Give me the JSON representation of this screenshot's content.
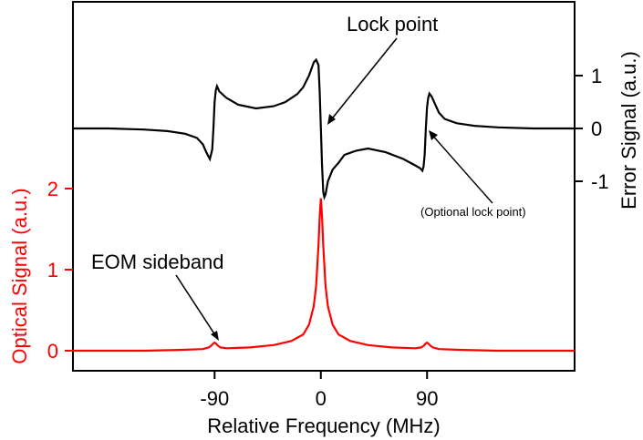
{
  "chart_data": {
    "type": "line",
    "xlabel": "Relative Frequency (MHz)",
    "x_ticks": [
      {
        "value": -90,
        "label": "-90"
      },
      {
        "value": 0,
        "label": "0"
      },
      {
        "value": 90,
        "label": "90"
      }
    ],
    "xlim": [
      -210,
      215
    ],
    "left_axis": {
      "label": "Optical Signal (a.u.)",
      "color": "#ff0000",
      "ticks": [
        {
          "value": 0,
          "label": "0"
        },
        {
          "value": 1,
          "label": "1"
        },
        {
          "value": 2,
          "label": "2"
        }
      ]
    },
    "right_axis": {
      "label": "Error Signal (a.u.)",
      "color": "#000000",
      "ticks": [
        {
          "value": 1,
          "label": "1"
        },
        {
          "value": 0,
          "label": "0"
        },
        {
          "value": -1,
          "label": "-1"
        }
      ]
    },
    "series": [
      {
        "axis": "left",
        "color": "#ff0000",
        "x": [
          -210,
          -150,
          -120,
          -100,
          -95,
          -93,
          -91,
          -90,
          -89,
          -87,
          -85,
          -80,
          -60,
          -40,
          -25,
          -15,
          -10,
          -6,
          -4,
          -2,
          -1,
          0,
          1,
          2,
          4,
          6,
          10,
          15,
          25,
          40,
          60,
          80,
          85,
          87,
          89,
          90,
          91,
          93,
          95,
          100,
          120,
          150,
          215
        ],
        "y": [
          0.0,
          0.0,
          0.01,
          0.02,
          0.04,
          0.06,
          0.09,
          0.1,
          0.09,
          0.06,
          0.04,
          0.03,
          0.04,
          0.07,
          0.12,
          0.2,
          0.32,
          0.55,
          0.8,
          1.3,
          1.65,
          1.88,
          1.65,
          1.3,
          0.8,
          0.55,
          0.32,
          0.2,
          0.12,
          0.07,
          0.04,
          0.03,
          0.04,
          0.06,
          0.09,
          0.1,
          0.09,
          0.06,
          0.04,
          0.02,
          0.01,
          0.0,
          0.0
        ]
      },
      {
        "axis": "right",
        "color": "#000000",
        "x": [
          -210,
          -180,
          -150,
          -130,
          -115,
          -105,
          -100,
          -97,
          -94,
          -92,
          -91,
          -90,
          -89,
          -88,
          -87,
          -86,
          -80,
          -70,
          -55,
          -40,
          -30,
          -20,
          -15,
          -10,
          -6,
          -4,
          -2,
          -1,
          0,
          1,
          2,
          3,
          4,
          6,
          10,
          15,
          20,
          30,
          40,
          55,
          70,
          80,
          84,
          86,
          87,
          88,
          89,
          90,
          91,
          92,
          94,
          97,
          100,
          105,
          115,
          130,
          150,
          180,
          215
        ],
        "y": [
          0.0,
          0.0,
          -0.02,
          -0.05,
          -0.1,
          -0.18,
          -0.3,
          -0.45,
          -0.58,
          -0.4,
          0.0,
          0.5,
          0.72,
          0.8,
          0.75,
          0.7,
          0.58,
          0.45,
          0.38,
          0.42,
          0.5,
          0.65,
          0.78,
          1.0,
          1.25,
          1.3,
          1.2,
          0.7,
          0.0,
          -0.7,
          -1.2,
          -1.3,
          -1.25,
          -1.0,
          -0.78,
          -0.65,
          -0.5,
          -0.42,
          -0.38,
          -0.45,
          -0.58,
          -0.7,
          -0.75,
          -0.8,
          -0.72,
          -0.5,
          0.0,
          0.4,
          0.58,
          0.66,
          0.6,
          0.45,
          0.3,
          0.18,
          0.1,
          0.05,
          0.02,
          0.0,
          0.0
        ]
      }
    ],
    "annotations": [
      {
        "text": "Lock point"
      },
      {
        "text": "EOM sideband"
      },
      {
        "text": "(Optional lock point)"
      }
    ]
  }
}
